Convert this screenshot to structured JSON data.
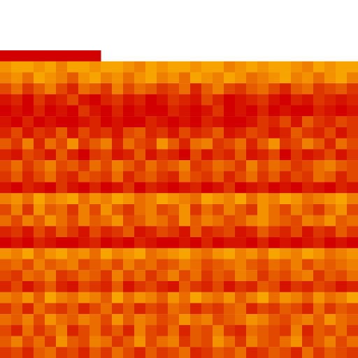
{
  "chart_data": {
    "type": "heatmap",
    "tick_labels": false,
    "grid": false,
    "values": [
      [
        0,
        0,
        0,
        0,
        0,
        0,
        0,
        0,
        0,
        null,
        null,
        null,
        null,
        null,
        null,
        null,
        null,
        null,
        null,
        null,
        null,
        null,
        null,
        null,
        null,
        null,
        null,
        null,
        null,
        null,
        null,
        null
      ],
      [
        8,
        9,
        9,
        8,
        9,
        7,
        9,
        9,
        8,
        9,
        9,
        8,
        7,
        9,
        8,
        9,
        9,
        8,
        9,
        9,
        7,
        8,
        9,
        8,
        9,
        9,
        8,
        7,
        9,
        8,
        9,
        9
      ],
      [
        7,
        8,
        6,
        9,
        8,
        7,
        5,
        8,
        9,
        7,
        8,
        6,
        8,
        9,
        7,
        8,
        6,
        9,
        8,
        7,
        9,
        8,
        6,
        7,
        8,
        9,
        7,
        8,
        6,
        8,
        9,
        7
      ],
      [
        4,
        6,
        3,
        5,
        7,
        4,
        2,
        6,
        5,
        3,
        7,
        4,
        6,
        5,
        3,
        4,
        6,
        2,
        5,
        7,
        4,
        3,
        5,
        6,
        4,
        2,
        5,
        6,
        3,
        4,
        5,
        3
      ],
      [
        1,
        2,
        0,
        3,
        1,
        2,
        4,
        1,
        0,
        2,
        3,
        1,
        2,
        0,
        1,
        3,
        2,
        1,
        4,
        2,
        0,
        1,
        2,
        3,
        1,
        0,
        2,
        1,
        3,
        2,
        1,
        2
      ],
      [
        0,
        1,
        0,
        2,
        0,
        1,
        0,
        3,
        1,
        0,
        2,
        0,
        1,
        0,
        0,
        2,
        1,
        0,
        1,
        3,
        0,
        1,
        0,
        2,
        0,
        1,
        0,
        0,
        2,
        1,
        0,
        1
      ],
      [
        1,
        0,
        2,
        0,
        1,
        0,
        0,
        1,
        2,
        0,
        1,
        0,
        0,
        2,
        1,
        0,
        1,
        0,
        2,
        1,
        0,
        0,
        1,
        3,
        2,
        4,
        1,
        5,
        3,
        2,
        4,
        3
      ],
      [
        2,
        4,
        1,
        3,
        2,
        5,
        1,
        4,
        2,
        3,
        1,
        4,
        5,
        2,
        3,
        1,
        4,
        2,
        3,
        5,
        1,
        2,
        4,
        3,
        1,
        2,
        5,
        3,
        2,
        4,
        1,
        3
      ],
      [
        5,
        3,
        7,
        2,
        6,
        4,
        8,
        3,
        5,
        7,
        2,
        6,
        4,
        3,
        8,
        5,
        2,
        6,
        7,
        3,
        4,
        6,
        2,
        5,
        8,
        3,
        4,
        7,
        5,
        2,
        6,
        4
      ],
      [
        2,
        1,
        4,
        3,
        1,
        5,
        2,
        0,
        3,
        4,
        1,
        2,
        5,
        1,
        3,
        2,
        0,
        4,
        1,
        3,
        2,
        5,
        1,
        2,
        4,
        0,
        3,
        1,
        2,
        4,
        1,
        3
      ],
      [
        4,
        6,
        3,
        5,
        7,
        4,
        5,
        3,
        6,
        4,
        7,
        5,
        3,
        6,
        4,
        5,
        7,
        3,
        4,
        6,
        5,
        3,
        7,
        4,
        6,
        5,
        3,
        4,
        6,
        7,
        5,
        4
      ],
      [
        3,
        5,
        2,
        4,
        6,
        3,
        2,
        5,
        4,
        3,
        6,
        2,
        4,
        5,
        3,
        2,
        6,
        4,
        3,
        5,
        2,
        4,
        6,
        3,
        5,
        2,
        4,
        3,
        6,
        5,
        2,
        4
      ],
      [
        1,
        0,
        2,
        1,
        0,
        3,
        1,
        0,
        2,
        0,
        1,
        3,
        0,
        2,
        1,
        0,
        1,
        2,
        0,
        1,
        3,
        0,
        1,
        2,
        0,
        1,
        0,
        2,
        1,
        0,
        2,
        1
      ],
      [
        7,
        8,
        6,
        9,
        7,
        8,
        9,
        6,
        8,
        7,
        9,
        8,
        6,
        7,
        9,
        8,
        7,
        6,
        9,
        8,
        7,
        9,
        6,
        8,
        7,
        9,
        8,
        6,
        7,
        8,
        9,
        7
      ],
      [
        4,
        7,
        3,
        8,
        5,
        6,
        3,
        7,
        4,
        8,
        5,
        3,
        6,
        7,
        4,
        5,
        8,
        3,
        6,
        4,
        7,
        5,
        3,
        8,
        6,
        4,
        7,
        5,
        3,
        6,
        8,
        4
      ],
      [
        6,
        4,
        7,
        5,
        8,
        6,
        4,
        7,
        5,
        6,
        8,
        4,
        5,
        7,
        6,
        4,
        8,
        5,
        7,
        6,
        4,
        5,
        7,
        8,
        6,
        5,
        4,
        7,
        6,
        8,
        5,
        6
      ],
      [
        2,
        3,
        1,
        4,
        2,
        5,
        3,
        1,
        4,
        2,
        3,
        5,
        1,
        2,
        4,
        3,
        1,
        5,
        2,
        3,
        4,
        1,
        2,
        5,
        3,
        2,
        4,
        1,
        3,
        2,
        5,
        3
      ],
      [
        0,
        1,
        0,
        2,
        1,
        0,
        0,
        1,
        2,
        0,
        1,
        0,
        2,
        1,
        0,
        0,
        1,
        0,
        2,
        0,
        1,
        1,
        0,
        2,
        0,
        1,
        0,
        1,
        2,
        0,
        1,
        0
      ],
      [
        8,
        7,
        9,
        6,
        8,
        9,
        7,
        8,
        6,
        9,
        7,
        8,
        9,
        6,
        7,
        8,
        9,
        7,
        6,
        8,
        9,
        7,
        8,
        6,
        9,
        8,
        7,
        9,
        8,
        6,
        7,
        8
      ],
      [
        5,
        6,
        4,
        7,
        5,
        6,
        7,
        4,
        5,
        6,
        4,
        7,
        5,
        6,
        4,
        5,
        7,
        6,
        4,
        5,
        6,
        7,
        5,
        4,
        6,
        5,
        7,
        4,
        6,
        5,
        6,
        7
      ],
      [
        4,
        3,
        6,
        5,
        7,
        3,
        4,
        6,
        5,
        3,
        7,
        4,
        6,
        3,
        5,
        7,
        4,
        6,
        3,
        5,
        4,
        7,
        6,
        3,
        5,
        4,
        6,
        7,
        3,
        5,
        4,
        6
      ],
      [
        2,
        4,
        1,
        3,
        5,
        2,
        1,
        4,
        3,
        2,
        5,
        1,
        3,
        4,
        2,
        1,
        5,
        3,
        2,
        4,
        1,
        3,
        2,
        5,
        4,
        1,
        3,
        2,
        4,
        3,
        1,
        2
      ],
      [
        7,
        6,
        8,
        5,
        9,
        7,
        6,
        8,
        7,
        5,
        9,
        6,
        8,
        7,
        5,
        8,
        6,
        9,
        7,
        6,
        8,
        5,
        7,
        9,
        6,
        8,
        7,
        5,
        8,
        6,
        7,
        9
      ],
      [
        3,
        5,
        2,
        6,
        4,
        3,
        5,
        2,
        4,
        6,
        3,
        5,
        2,
        4,
        3,
        6,
        5,
        2,
        4,
        3,
        5,
        6,
        2,
        4,
        3,
        5,
        4,
        2,
        6,
        3,
        5,
        4
      ],
      [
        6,
        5,
        7,
        4,
        8,
        6,
        5,
        7,
        6,
        4,
        8,
        5,
        7,
        6,
        4,
        5,
        8,
        6,
        7,
        4,
        5,
        6,
        8,
        7,
        5,
        4,
        6,
        7,
        5,
        8,
        6,
        5
      ],
      [
        4,
        2,
        6,
        3,
        5,
        7,
        2,
        4,
        6,
        3,
        5,
        2,
        7,
        4,
        3,
        6,
        2,
        5,
        4,
        7,
        3,
        2,
        6,
        5,
        4,
        3,
        7,
        2,
        5,
        4,
        6,
        3
      ],
      [
        5,
        7,
        4,
        6,
        3,
        8,
        5,
        4,
        7,
        6,
        3,
        5,
        8,
        4,
        6,
        7,
        3,
        5,
        4,
        8,
        6,
        3,
        7,
        5,
        4,
        6,
        8,
        3,
        5,
        7,
        4,
        6
      ],
      [
        3,
        4,
        2,
        5,
        6,
        3,
        4,
        2,
        5,
        3,
        6,
        4,
        2,
        5,
        3,
        4,
        6,
        2,
        3,
        5,
        4,
        6,
        2,
        3,
        5,
        4,
        2,
        6,
        3,
        5,
        4,
        3
      ]
    ]
  }
}
